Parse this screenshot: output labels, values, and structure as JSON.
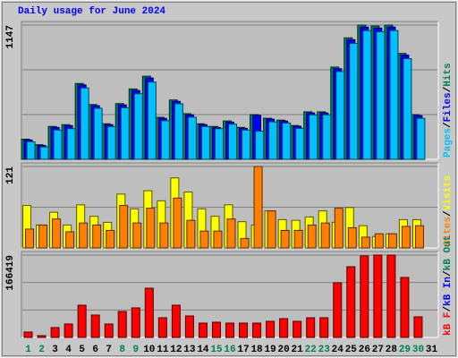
{
  "chart_data": [
    {
      "type": "bar",
      "title": "Daily usage for June 2024",
      "legend_separator": "/",
      "ylim": [
        0,
        1147
      ],
      "yticks": [
        1147
      ],
      "series": [
        {
          "name": "Hits",
          "color": "#00805c",
          "values": [
            172,
            125,
            281,
            296,
            648,
            468,
            304,
            476,
            601,
            710,
            359,
            507,
            390,
            304,
            281,
            328,
            273,
            382,
            351,
            335,
            289,
            406,
            406,
            788,
            1038,
            1147,
            1139,
            1147,
            905,
            382,
            0
          ]
        },
        {
          "name": "Files",
          "color": "#0000ff",
          "values": [
            165,
            118,
            272,
            288,
            636,
            458,
            296,
            465,
            588,
            695,
            350,
            495,
            380,
            296,
            272,
            318,
            265,
            375,
            343,
            327,
            282,
            396,
            396,
            774,
            1022,
            1130,
            1122,
            1130,
            890,
            373,
            0
          ]
        },
        {
          "name": "Pages",
          "color": "#00c0ff",
          "values": [
            150,
            106,
            250,
            262,
            610,
            436,
            280,
            440,
            560,
            660,
            330,
            475,
            360,
            280,
            262,
            300,
            250,
            240,
            320,
            310,
            265,
            380,
            380,
            750,
            990,
            1100,
            1090,
            1100,
            860,
            350,
            0
          ]
        }
      ]
    },
    {
      "type": "bar",
      "legend_separator": "/",
      "ylim": [
        0,
        121
      ],
      "yticks": [
        121
      ],
      "series": [
        {
          "name": "Visits",
          "color": "#ffff00",
          "values": [
            63,
            34,
            53,
            34,
            64,
            47,
            38,
            80,
            58,
            85,
            70,
            104,
            83,
            58,
            47,
            64,
            39,
            34,
            55,
            42,
            41,
            46,
            55,
            38,
            60,
            33,
            17,
            21,
            42,
            42,
            0
          ]
        },
        {
          "name": "Sites",
          "color": "#ff8000",
          "values": [
            28,
            34,
            43,
            24,
            37,
            34,
            26,
            63,
            37,
            59,
            37,
            74,
            41,
            25,
            25,
            43,
            14,
            121,
            55,
            26,
            26,
            34,
            37,
            59,
            30,
            16,
            21,
            21,
            32,
            33,
            0
          ]
        }
      ]
    },
    {
      "type": "bar",
      "legend_separator": "/",
      "ylim": [
        0,
        166419
      ],
      "yticks": [
        166419
      ],
      "x": [
        1,
        2,
        3,
        4,
        5,
        6,
        7,
        8,
        9,
        10,
        11,
        12,
        13,
        14,
        15,
        16,
        17,
        18,
        19,
        20,
        21,
        22,
        23,
        24,
        25,
        26,
        27,
        28,
        29,
        30,
        31
      ],
      "x_colors": [
        "#00805c",
        "#00805c",
        "#000000",
        "#000000",
        "#000000",
        "#000000",
        "#000000",
        "#00805c",
        "#00805c",
        "#000000",
        "#000000",
        "#000000",
        "#000000",
        "#000000",
        "#00805c",
        "#00805c",
        "#000000",
        "#000000",
        "#000000",
        "#000000",
        "#000000",
        "#00805c",
        "#00805c",
        "#000000",
        "#000000",
        "#000000",
        "#000000",
        "#000000",
        "#00805c",
        "#00805c",
        "#000000"
      ],
      "series": [
        {
          "name": "kB Out",
          "color": "#00805c"
        },
        {
          "name": "kB In",
          "color": "#0000ff"
        },
        {
          "name": "kB F",
          "color": "#ff0000",
          "values": [
            10854,
            3618,
            19899,
            27135,
            65124,
            45225,
            27135,
            52461,
            59697,
            99495,
            39798,
            65124,
            43416,
            28944,
            30753,
            28944,
            28944,
            28944,
            32562,
            37989,
            32562,
            39798,
            39798,
            110349,
            142911,
            164619,
            166419,
            166419,
            121203,
            41607,
            0
          ]
        }
      ]
    }
  ]
}
